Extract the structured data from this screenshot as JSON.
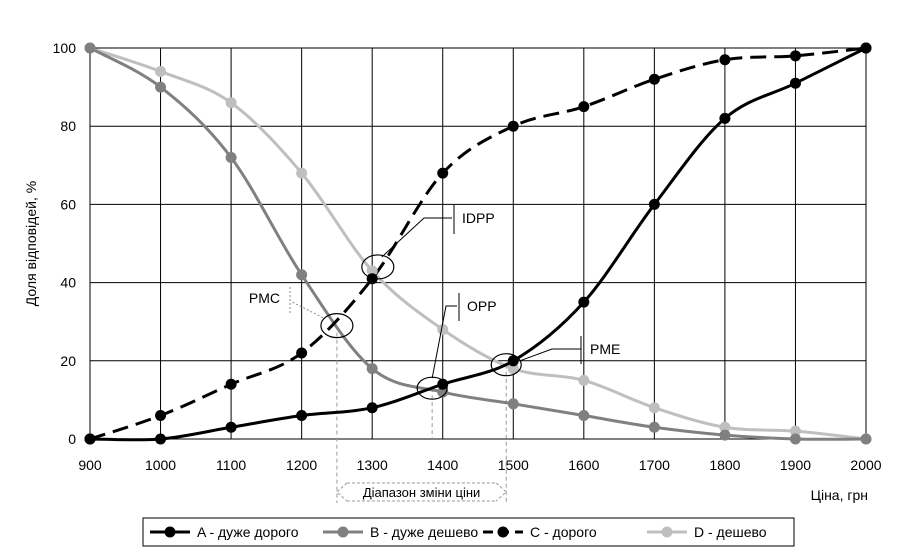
{
  "chart_data": {
    "type": "line",
    "xlabel": "Ціна, грн",
    "ylabel": "Доля відповідей, %",
    "xlim": [
      900,
      2000
    ],
    "ylim": [
      0,
      100
    ],
    "x_ticks": [
      900,
      1000,
      1100,
      1200,
      1300,
      1400,
      1500,
      1600,
      1700,
      1800,
      1900,
      2000
    ],
    "y_ticks": [
      0,
      20,
      40,
      60,
      80,
      100
    ],
    "grid": true,
    "legend_position": "bottom",
    "series": [
      {
        "name": "A - дуже дорого",
        "color": "#000000",
        "dash": "solid",
        "x": [
          900,
          1000,
          1100,
          1200,
          1300,
          1400,
          1500,
          1600,
          1700,
          1800,
          1900,
          2000
        ],
        "y": [
          0,
          0,
          3,
          6,
          8,
          14,
          20,
          35,
          60,
          82,
          91,
          100
        ]
      },
      {
        "name": "B - дуже дешево",
        "color": "#808080",
        "dash": "solid",
        "x": [
          900,
          1000,
          1100,
          1200,
          1300,
          1400,
          1500,
          1600,
          1700,
          1800,
          1900,
          2000
        ],
        "y": [
          100,
          90,
          72,
          42,
          18,
          12,
          9,
          6,
          3,
          1,
          0,
          0
        ]
      },
      {
        "name": "C - дорого",
        "color": "#000000",
        "dash": "dashed",
        "x": [
          900,
          1000,
          1100,
          1200,
          1300,
          1400,
          1500,
          1600,
          1700,
          1800,
          1900,
          2000
        ],
        "y": [
          0,
          6,
          14,
          22,
          41,
          68,
          80,
          85,
          92,
          97,
          98,
          100
        ]
      },
      {
        "name": "D - дешево",
        "color": "#bfbfbf",
        "dash": "solid",
        "x": [
          900,
          1000,
          1100,
          1200,
          1300,
          1400,
          1500,
          1600,
          1700,
          1800,
          1900,
          2000
        ],
        "y": [
          100,
          94,
          86,
          68,
          43,
          28,
          18,
          15,
          8,
          3,
          2,
          0
        ]
      }
    ],
    "annotations": {
      "pmc": "PMC",
      "idpp": "IDPP",
      "opp": "OPP",
      "pme": "PME",
      "range": "Діапазон зміни ціни"
    },
    "marked_points": [
      {
        "label": "PMC",
        "x": 1250,
        "y": 29
      },
      {
        "label": "IDPP",
        "x": 1308,
        "y": 44
      },
      {
        "label": "OPP",
        "x": 1385,
        "y": 13
      },
      {
        "label": "PME",
        "x": 1490,
        "y": 19
      }
    ],
    "price_range": [
      1250,
      1490
    ]
  }
}
